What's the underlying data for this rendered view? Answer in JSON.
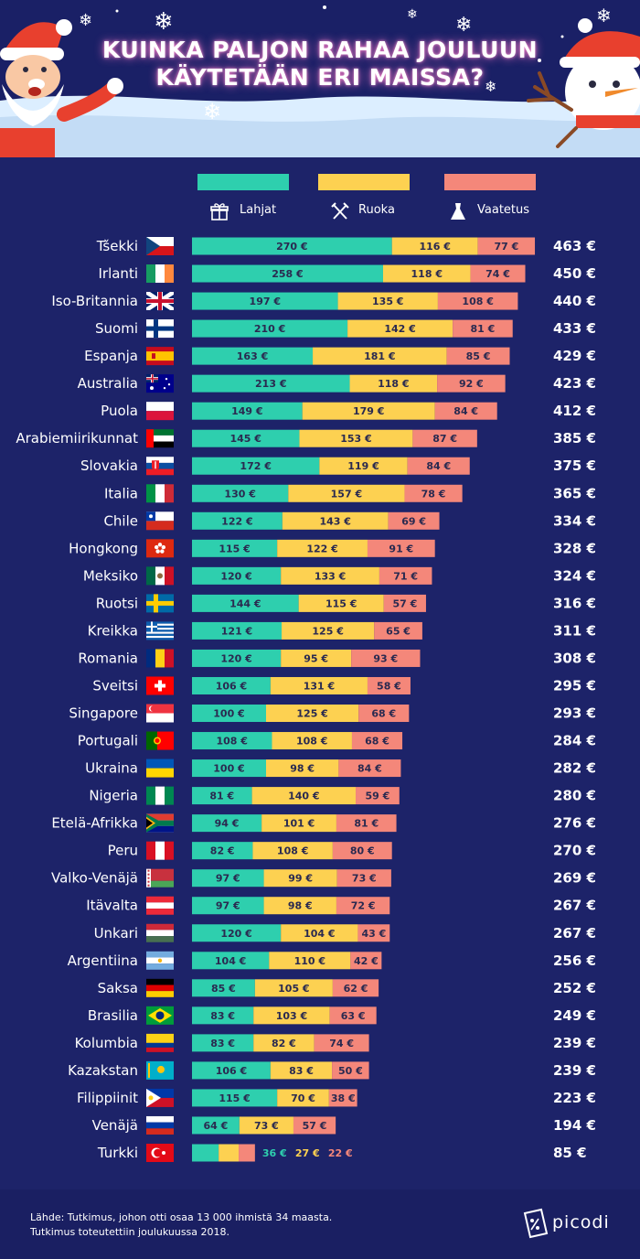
{
  "header": {
    "title_line1": "KUINKA PALJON RAHAA JOULUUN",
    "title_line2": "KÄYTETÄÄN ERI MAISSA?"
  },
  "legend": {
    "gifts": "Lahjat",
    "food": "Ruoka",
    "clothing": "Vaatetus"
  },
  "colors": {
    "gifts": "#2ecfae",
    "food": "#fdd151",
    "clothing": "#f4877a",
    "background": "#1d2369"
  },
  "footer": {
    "source_line1": "Lähde: Tutkimus, johon otti osaa 13 000 ihmistä 34 maasta.",
    "source_line2": "Tutkimus toteutettiin joulukuussa 2018.",
    "logo": "picodi"
  },
  "chart_data": {
    "type": "bar",
    "orientation": "horizontal-stacked",
    "title": "KUINKA PALJON RAHAA JOULUUN KÄYTETÄÄN ERI MAISSA?",
    "unit": "€",
    "series_names": [
      "Lahjat",
      "Ruoka",
      "Vaatetus"
    ],
    "categories": [
      "Tšekki",
      "Irlanti",
      "Iso-Britannia",
      "Suomi",
      "Espanja",
      "Australia",
      "Puola",
      "Arabiemiirikunnat",
      "Slovakia",
      "Italia",
      "Chile",
      "Hongkong",
      "Meksiko",
      "Ruotsi",
      "Kreikka",
      "Romania",
      "Sveitsi",
      "Singapore",
      "Portugali",
      "Ukraina",
      "Nigeria",
      "Etelä-Afrikka",
      "Peru",
      "Valko-Venäjä",
      "Itävalta",
      "Unkari",
      "Argentiina",
      "Saksa",
      "Brasilia",
      "Kolumbia",
      "Kazakstan",
      "Filippiinit",
      "Venäjä",
      "Turkki"
    ],
    "series": [
      {
        "name": "Lahjat",
        "values": [
          270,
          258,
          197,
          210,
          163,
          213,
          149,
          145,
          172,
          130,
          122,
          115,
          120,
          144,
          121,
          120,
          106,
          100,
          108,
          100,
          81,
          94,
          82,
          97,
          97,
          120,
          104,
          85,
          83,
          83,
          106,
          115,
          64,
          36
        ]
      },
      {
        "name": "Ruoka",
        "values": [
          116,
          118,
          135,
          142,
          181,
          118,
          179,
          153,
          119,
          157,
          143,
          122,
          133,
          115,
          125,
          95,
          131,
          125,
          108,
          98,
          140,
          101,
          108,
          99,
          98,
          104,
          110,
          105,
          103,
          82,
          83,
          70,
          73,
          27
        ]
      },
      {
        "name": "Vaatetus",
        "values": [
          77,
          74,
          108,
          81,
          85,
          92,
          84,
          87,
          84,
          78,
          69,
          91,
          71,
          57,
          65,
          93,
          58,
          68,
          68,
          84,
          59,
          81,
          80,
          73,
          72,
          43,
          42,
          62,
          63,
          74,
          50,
          38,
          57,
          22
        ]
      }
    ],
    "totals": [
      463,
      450,
      440,
      433,
      429,
      423,
      412,
      385,
      375,
      365,
      334,
      328,
      324,
      316,
      311,
      308,
      295,
      293,
      284,
      282,
      280,
      276,
      270,
      269,
      267,
      267,
      256,
      252,
      249,
      239,
      239,
      223,
      194,
      85
    ],
    "value_labels": [
      [
        "270 €",
        "116 €",
        "77 €"
      ],
      [
        "258 €",
        "118 €",
        "74 €"
      ],
      [
        "197 €",
        "135 €",
        "108 €"
      ],
      [
        "210 €",
        "142 €",
        "81 €"
      ],
      [
        "163 €",
        "181 €",
        "85 €"
      ],
      [
        "213 €",
        "118 €",
        "92 €"
      ],
      [
        "149 €",
        "179 €",
        "84 €"
      ],
      [
        "145 €",
        "153 €",
        "87 €"
      ],
      [
        "172 €",
        "119 €",
        "84 €"
      ],
      [
        "130 €",
        "157 €",
        "78 €"
      ],
      [
        "122 €",
        "143 €",
        "69 €"
      ],
      [
        "115 €",
        "122 €",
        "91 €"
      ],
      [
        "120 €",
        "133 €",
        "71 €"
      ],
      [
        "144 €",
        "115 €",
        "57 €"
      ],
      [
        "121 €",
        "125 €",
        "65 €"
      ],
      [
        "120 €",
        "95 €",
        "93 €"
      ],
      [
        "106 €",
        "131 €",
        "58 €"
      ],
      [
        "100 €",
        "125 €",
        "68 €"
      ],
      [
        "108 €",
        "108 €",
        "68 €"
      ],
      [
        "100 €",
        "98 €",
        "84 €"
      ],
      [
        "81 €",
        "140 €",
        "59 €"
      ],
      [
        "94 €",
        "101 €",
        "81 €"
      ],
      [
        "82 €",
        "108 €",
        "80 €"
      ],
      [
        "97 €",
        "99 €",
        "73 €"
      ],
      [
        "97 €",
        "98 €",
        "72 €"
      ],
      [
        "120 €",
        "104 €",
        "43 €"
      ],
      [
        "104 €",
        "110 €",
        "42 €"
      ],
      [
        "85 €",
        "105 €",
        "62 €"
      ],
      [
        "83 €",
        "103 €",
        "63 €"
      ],
      [
        "83 €",
        "82 €",
        "74 €"
      ],
      [
        "106 €",
        "83 €",
        "50 €"
      ],
      [
        "115 €",
        "70 €",
        "38 €"
      ],
      [
        "64 €",
        "73 €",
        "57 €"
      ],
      [
        "36 €",
        "27 €",
        "22 €"
      ]
    ],
    "total_labels": [
      "463 €",
      "450 €",
      "440 €",
      "433 €",
      "429 €",
      "423 €",
      "412 €",
      "385 €",
      "375 €",
      "365 €",
      "334 €",
      "328 €",
      "324 €",
      "316 €",
      "311 €",
      "308 €",
      "295 €",
      "293 €",
      "284 €",
      "282 €",
      "280 €",
      "276 €",
      "270 €",
      "269 €",
      "267 €",
      "267 €",
      "256 €",
      "252 €",
      "249 €",
      "239 €",
      "239 €",
      "223 €",
      "194 €",
      "85 €"
    ],
    "flags": [
      "czech",
      "ireland",
      "uk",
      "finland",
      "spain",
      "australia",
      "poland",
      "uae",
      "slovakia",
      "italy",
      "chile",
      "hongkong",
      "mexico",
      "sweden",
      "greece",
      "romania",
      "switzerland",
      "singapore",
      "portugal",
      "ukraine",
      "nigeria",
      "south-africa",
      "peru",
      "belarus",
      "austria",
      "hungary",
      "argentina",
      "germany",
      "brazil",
      "colombia",
      "kazakhstan",
      "philippines",
      "russia",
      "turkey"
    ]
  }
}
